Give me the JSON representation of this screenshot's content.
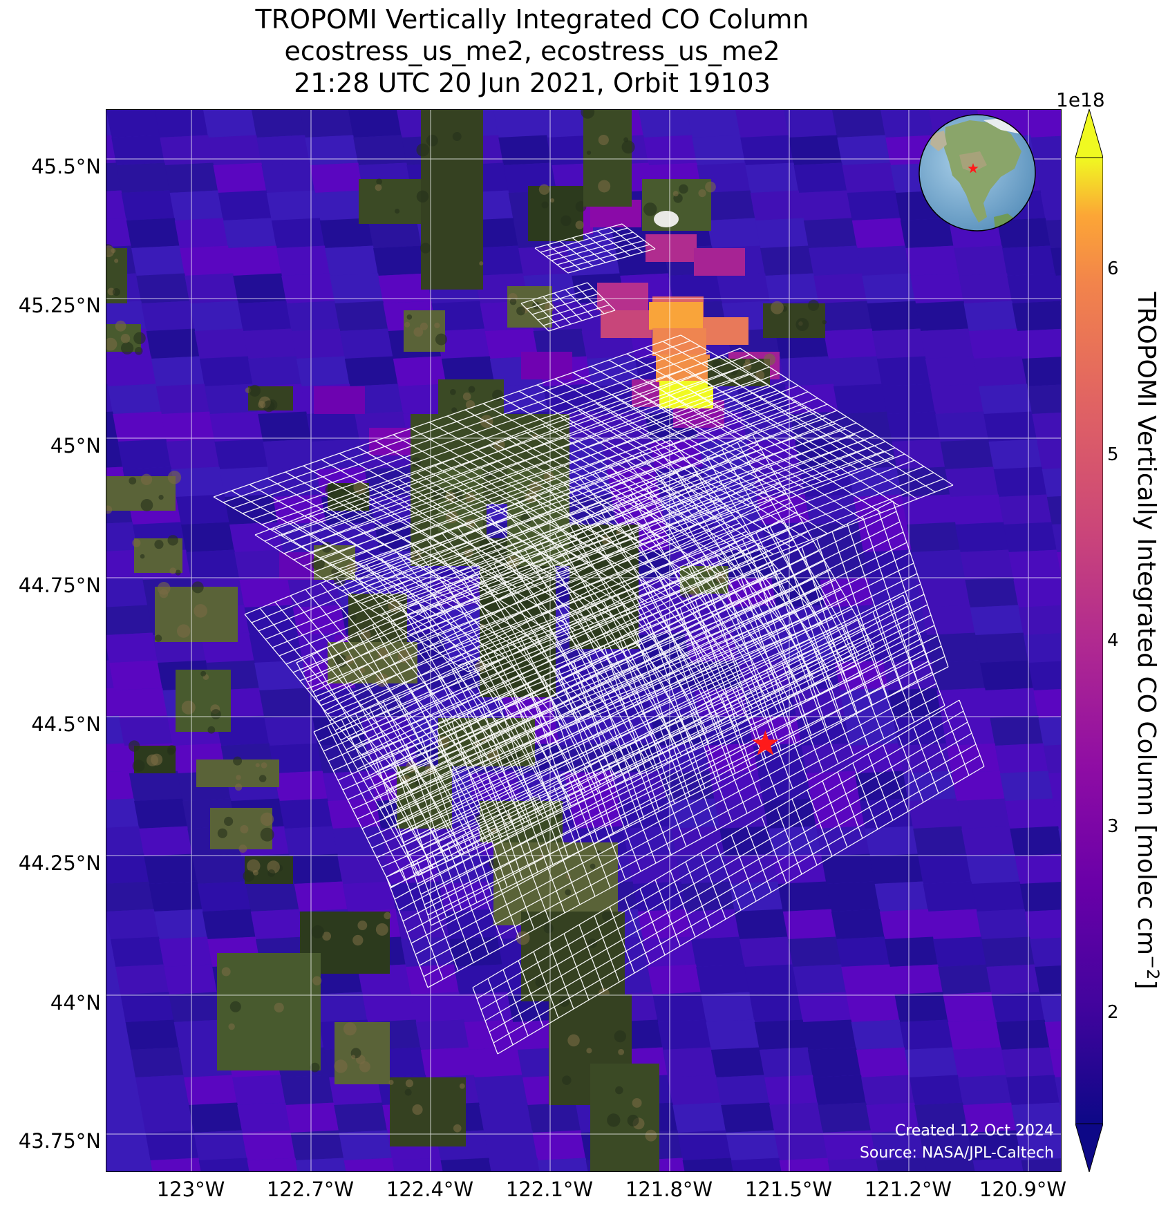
{
  "title": {
    "line1": "TROPOMI Vertically Integrated CO Column",
    "line2": "ecostress_us_me2, ecostress_us_me2",
    "line3": "21:28 UTC 20 Jun 2021, Orbit 19103"
  },
  "axes": {
    "lat_ticks": [
      "45.5°N",
      "45.25°N",
      "45°N",
      "44.75°N",
      "44.5°N",
      "44.25°N",
      "44°N",
      "43.75°N"
    ],
    "lon_ticks": [
      "123°W",
      "122.7°W",
      "122.4°W",
      "122.1°W",
      "121.8°W",
      "121.5°W",
      "121.2°W",
      "120.9°W"
    ]
  },
  "colorbar": {
    "label": "TROPOMI Vertically Integrated CO Column [molec cm",
    "label_sup": "−2",
    "label_end": "]",
    "exponent": "1e18",
    "ticks": [
      "2",
      "3",
      "4",
      "5",
      "6"
    ],
    "range": [
      1.4,
      6.6
    ],
    "colormap": "plasma",
    "extend": "both"
  },
  "site_marker": {
    "lat": 44.45,
    "lon": -121.56,
    "color": "#ff1a1a",
    "symbol": "star-icon"
  },
  "credits": {
    "line1": "Created 12 Oct 2024",
    "line2": "Source: NASA/JPL-Caltech"
  },
  "colors": {
    "background_co": "#3a1bb8",
    "high_co": "#f8f02a",
    "grid": "#ffffff",
    "footprint": "#ffffff"
  }
}
